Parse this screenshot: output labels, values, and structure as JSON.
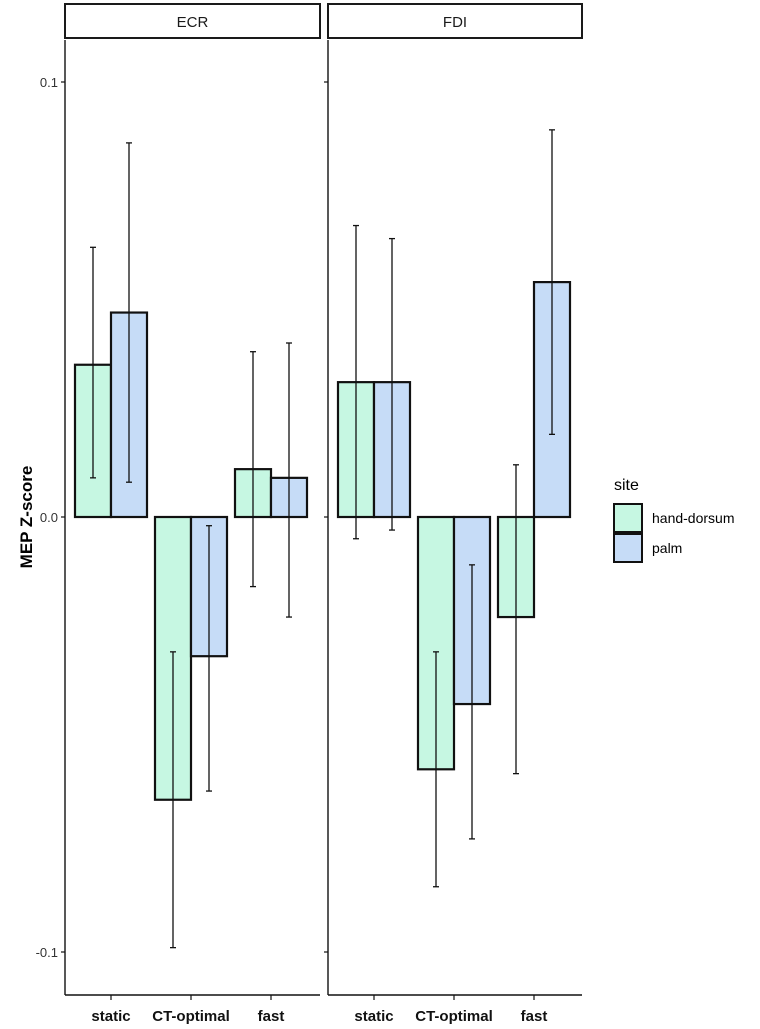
{
  "chart_data": {
    "type": "bar",
    "ylabel": "MEP Z-score",
    "xlabel": "",
    "ylim": [
      -0.108,
      0.1
    ],
    "yticks": [
      0.1,
      0.0,
      -0.1
    ],
    "ytick_labels": [
      "0.1",
      "0.0",
      "-0.1"
    ],
    "categories": [
      "static",
      "CT-optimal",
      "fast"
    ],
    "legend": {
      "title": "site",
      "position": "right",
      "entries": [
        {
          "name": "hand-dorsum",
          "color": "#c6f7e2"
        },
        {
          "name": "palm",
          "color": "#c6dcf7"
        }
      ]
    },
    "panels": [
      {
        "title": "ECR",
        "series": [
          {
            "name": "hand-dorsum",
            "values": [
              0.035,
              -0.065,
              0.011
            ],
            "err_low": [
              0.009,
              -0.099,
              -0.016
            ],
            "err_high": [
              0.062,
              -0.031,
              0.038
            ]
          },
          {
            "name": "palm",
            "values": [
              0.047,
              -0.032,
              0.009
            ],
            "err_low": [
              0.008,
              -0.063,
              -0.023
            ],
            "err_high": [
              0.086,
              -0.002,
              0.04
            ]
          }
        ]
      },
      {
        "title": "FDI",
        "series": [
          {
            "name": "hand-dorsum",
            "values": [
              0.031,
              -0.058,
              -0.023
            ],
            "err_low": [
              -0.005,
              -0.085,
              -0.059
            ],
            "err_high": [
              0.067,
              -0.031,
              0.012
            ]
          },
          {
            "name": "palm",
            "values": [
              0.031,
              -0.043,
              0.054
            ],
            "err_low": [
              -0.003,
              -0.074,
              0.019
            ],
            "err_high": [
              0.064,
              -0.011,
              0.089
            ]
          }
        ]
      }
    ]
  }
}
